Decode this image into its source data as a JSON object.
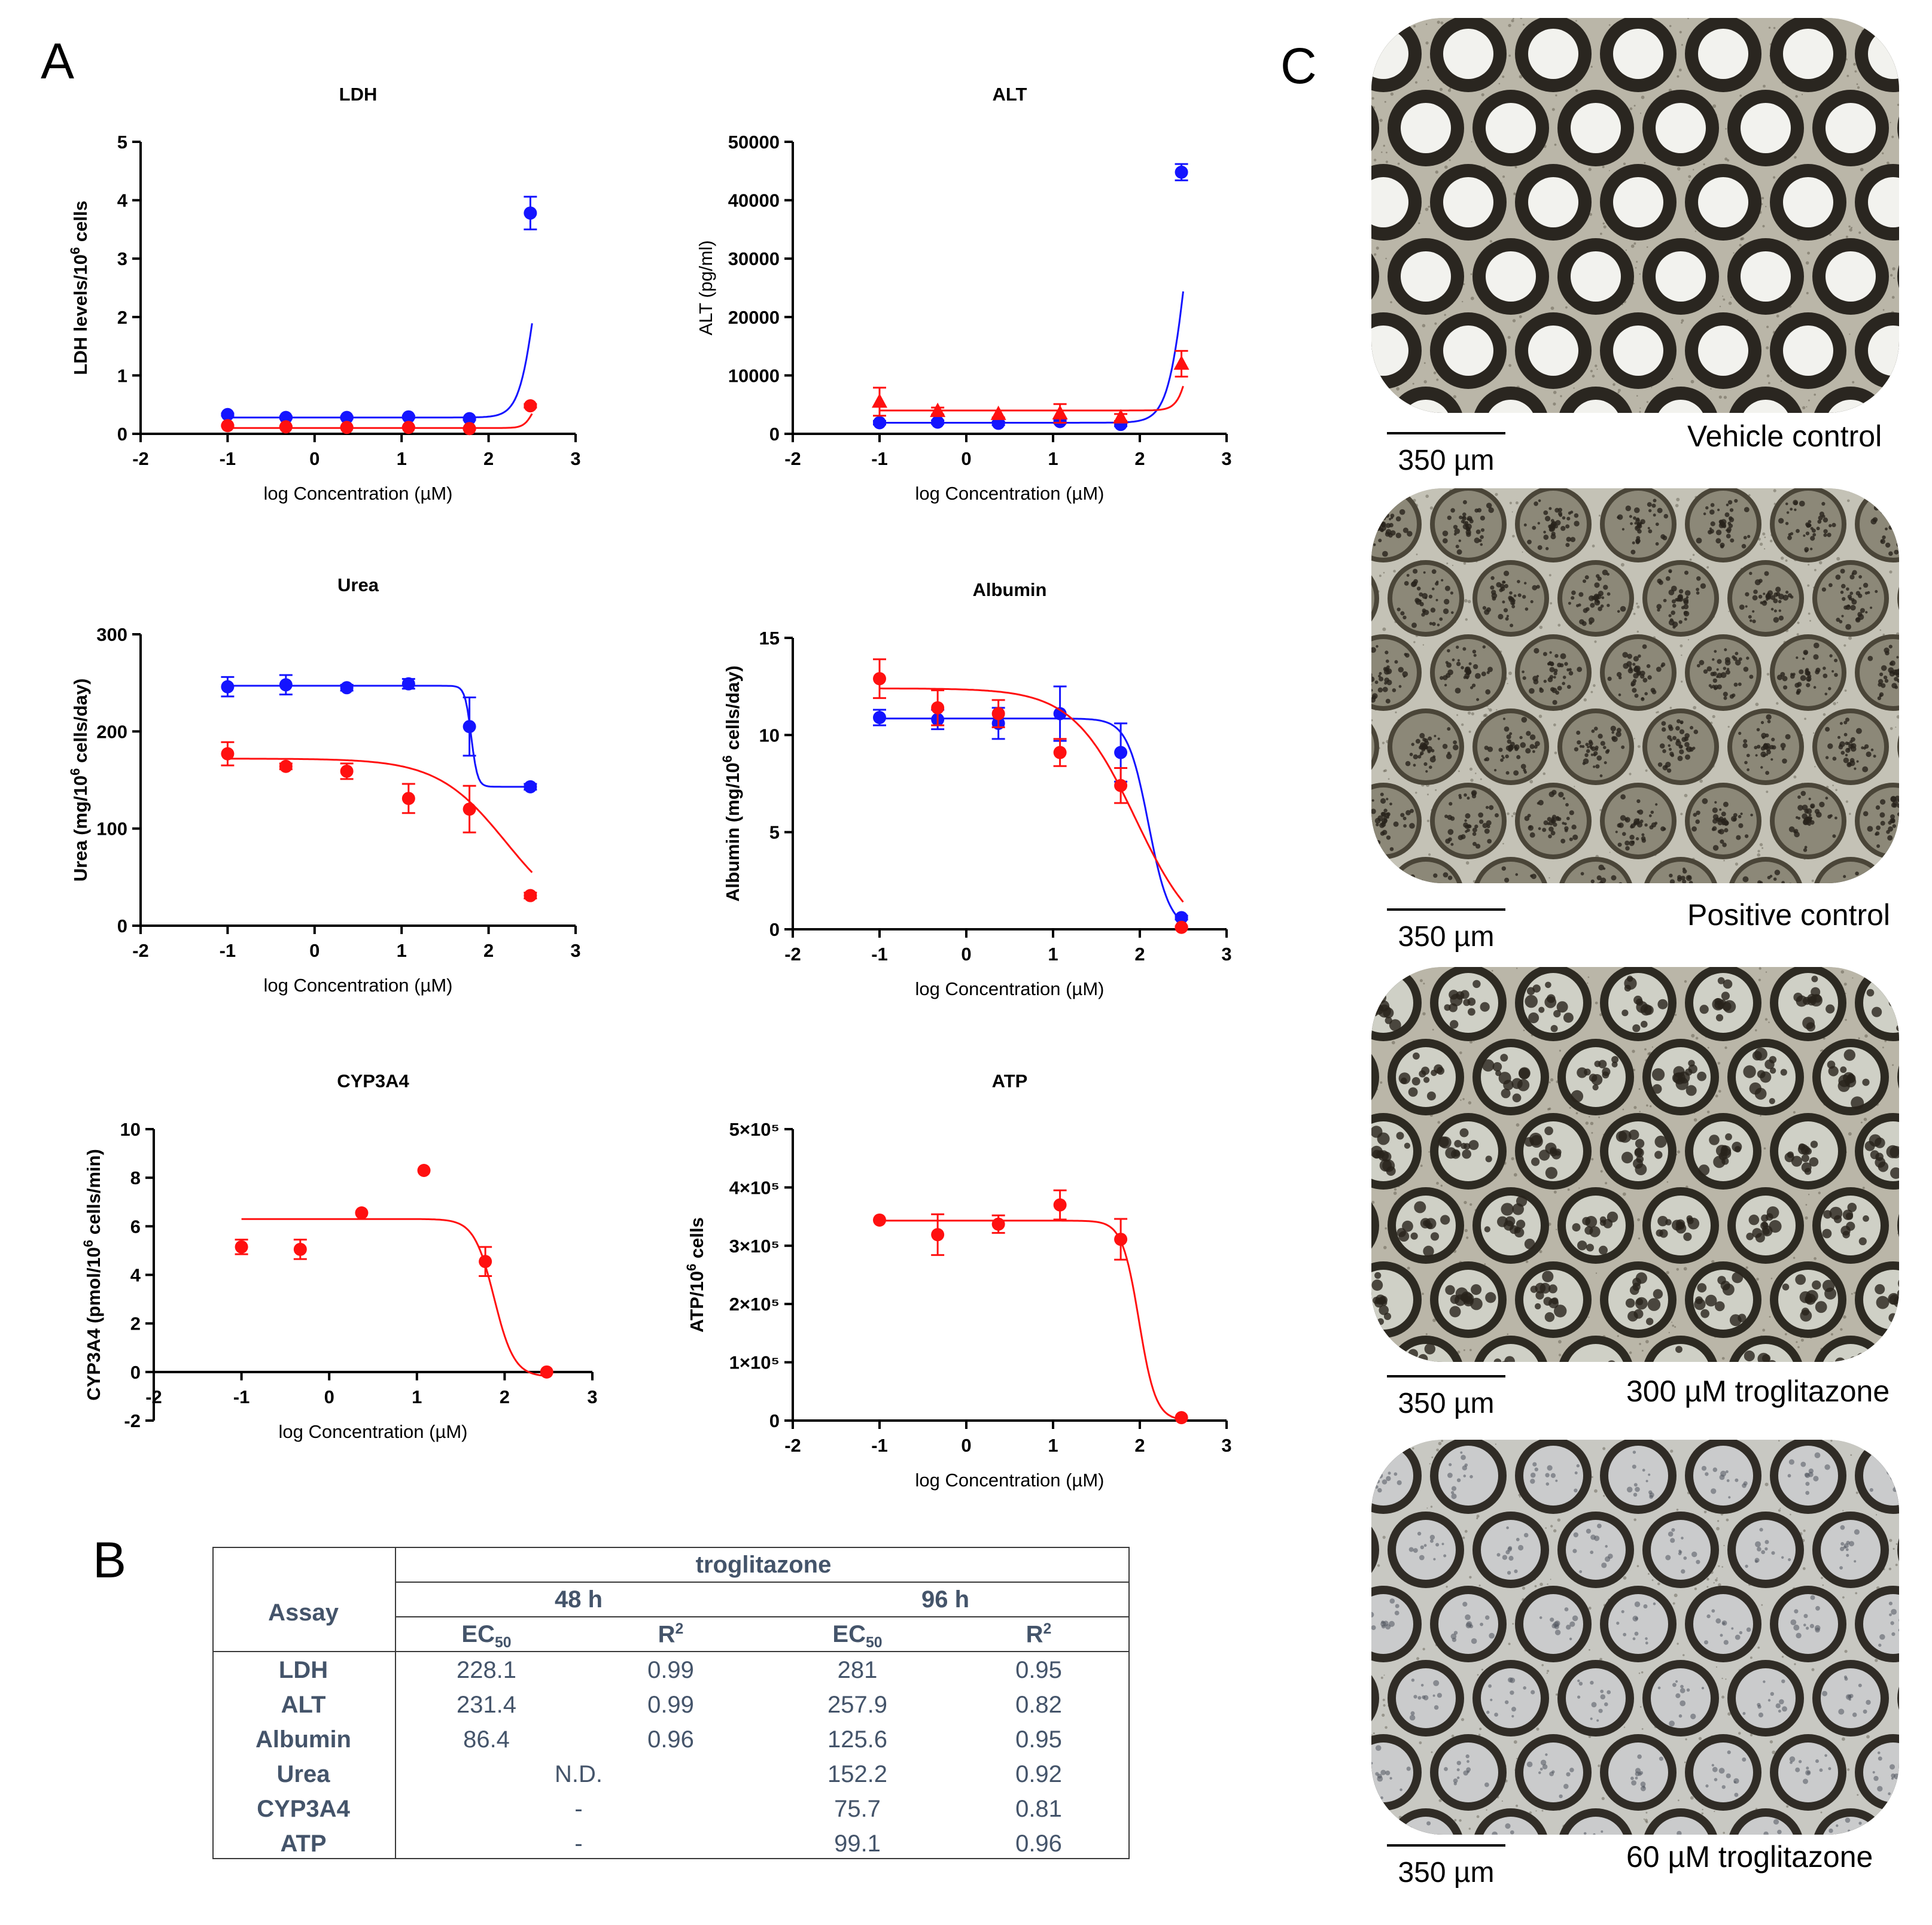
{
  "panels": {
    "a": "A",
    "b": "B",
    "c": "C"
  },
  "colors": {
    "blue": "#1414ff",
    "red": "#ff1010",
    "axis": "#000000",
    "table_text": "#44546a"
  },
  "chart_data": [
    {
      "id": "ldh",
      "type": "scatter",
      "title": "LDH",
      "ylabel": "LDH levels/10^6 cells",
      "ylabel_parts": {
        "main": "LDH levels/10",
        "sup": "6",
        "tail": " cells"
      },
      "xlabel": "log Concentration (µM)",
      "xlim": [
        -2,
        3
      ],
      "ylim": [
        0,
        5
      ],
      "xticks": [
        -2,
        -1,
        0,
        1,
        2,
        3
      ],
      "yticks": [
        0,
        1,
        2,
        3,
        4,
        5
      ],
      "ytick_labels": [
        "0",
        "1",
        "2",
        "3",
        "4",
        "5"
      ],
      "series": [
        {
          "name": "blue",
          "color": "#1414ff",
          "marker": "circle",
          "x": [
            -1,
            -0.33,
            0.37,
            1.08,
            1.78,
            2.48
          ],
          "y": [
            0.33,
            0.28,
            0.28,
            0.29,
            0.26,
            3.78
          ],
          "err": [
            0.02,
            0.02,
            0.02,
            0.02,
            0.02,
            0.28
          ],
          "fit": {
            "model": "hill",
            "bottom": 0.28,
            "top": 4.6,
            "logEC50": 2.55,
            "slope": 4.5,
            "xmin": -1,
            "xmax": 2.5
          }
        },
        {
          "name": "red",
          "color": "#ff1010",
          "marker": "circle",
          "x": [
            -1,
            -0.33,
            0.37,
            1.08,
            1.78,
            2.48
          ],
          "y": [
            0.14,
            0.12,
            0.11,
            0.11,
            0.09,
            0.48
          ],
          "err": [
            0.01,
            0.01,
            0.01,
            0.01,
            0.01,
            0.03
          ],
          "fit": {
            "model": "hill",
            "bottom": 0.1,
            "top": 0.7,
            "logEC50": 2.52,
            "slope": 8,
            "xmin": -1,
            "xmax": 2.5
          }
        }
      ]
    },
    {
      "id": "alt",
      "type": "scatter",
      "title": "ALT",
      "ylabel": "ALT (pg/ml)",
      "xlabel": "log Concentration (µM)",
      "xlim": [
        -2,
        3
      ],
      "ylim": [
        0,
        50000
      ],
      "xticks": [
        -2,
        -1,
        0,
        1,
        2,
        3
      ],
      "yticks": [
        0,
        10000,
        20000,
        30000,
        40000,
        50000
      ],
      "ytick_labels": [
        "0",
        "10000",
        "20000",
        "30000",
        "40000",
        "50000"
      ],
      "series": [
        {
          "name": "blue",
          "color": "#1414ff",
          "marker": "circle",
          "x": [
            -1,
            -0.33,
            0.37,
            1.08,
            1.78,
            2.48
          ],
          "y": [
            1900,
            2000,
            1800,
            2100,
            1600,
            44800
          ],
          "err": [
            300,
            300,
            300,
            300,
            300,
            1400
          ],
          "fit": {
            "model": "hill",
            "bottom": 1900,
            "top": 60000,
            "logEC50": 2.55,
            "slope": 4,
            "xmin": -1,
            "xmax": 2.5
          }
        },
        {
          "name": "red",
          "color": "#ff1010",
          "marker": "triangle",
          "x": [
            -1,
            -0.33,
            0.37,
            1.08,
            1.78,
            2.48
          ],
          "y": [
            5500,
            3900,
            3400,
            3500,
            2800,
            12000
          ],
          "err": [
            2400,
            600,
            600,
            1600,
            600,
            2200
          ],
          "fit": {
            "model": "hill",
            "bottom": 4000,
            "top": 30000,
            "logEC50": 2.62,
            "slope": 6,
            "xmin": -1,
            "xmax": 2.5
          }
        }
      ]
    },
    {
      "id": "urea",
      "type": "scatter",
      "title": "Urea",
      "ylabel": "Urea (mg/10^6 cells/day)",
      "ylabel_parts": {
        "main": "Urea (mg/10",
        "sup": "6",
        "tail": " cells/day)"
      },
      "xlabel": "log Concentration (µM)",
      "xlim": [
        -2,
        3
      ],
      "ylim": [
        0,
        300
      ],
      "xticks": [
        -2,
        -1,
        0,
        1,
        2,
        3
      ],
      "yticks": [
        0,
        100,
        200,
        300
      ],
      "ytick_labels": [
        "0",
        "100",
        "200",
        "300"
      ],
      "series": [
        {
          "name": "blue",
          "color": "#1414ff",
          "marker": "circle",
          "x": [
            -1,
            -0.33,
            0.37,
            1.08,
            1.78,
            2.48
          ],
          "y": [
            246,
            248,
            245,
            249,
            205,
            143
          ],
          "err": [
            10,
            10,
            3,
            5,
            30,
            3
          ],
          "fit": {
            "model": "hill_down",
            "top": 247,
            "bottom": 143,
            "logEC50": 1.8,
            "slope": 12,
            "xmin": -1,
            "xmax": 2.5
          }
        },
        {
          "name": "red",
          "color": "#ff1010",
          "marker": "circle",
          "x": [
            -1,
            -0.33,
            0.37,
            1.08,
            1.78,
            2.48
          ],
          "y": [
            177,
            164,
            159,
            131,
            120,
            31
          ],
          "err": [
            12,
            3,
            8,
            15,
            24,
            3
          ],
          "fit": {
            "model": "hill_down",
            "top": 172,
            "bottom": 0,
            "logEC50": 2.2,
            "slope": 1.1,
            "xmin": -1,
            "xmax": 2.5
          }
        }
      ]
    },
    {
      "id": "albumin",
      "type": "scatter",
      "title": "Albumin",
      "ylabel": "Albumin (mg/10^6 cells/day)",
      "ylabel_parts": {
        "main": "Albumin (mg/10",
        "sup": "6",
        "tail": " cells/day)"
      },
      "xlabel": "log Concentration (µM)",
      "xlim": [
        -2,
        3
      ],
      "ylim": [
        0,
        15
      ],
      "xticks": [
        -2,
        -1,
        0,
        1,
        2,
        3
      ],
      "yticks": [
        0,
        5,
        10,
        15
      ],
      "ytick_labels": [
        "0",
        "5",
        "10",
        "15"
      ],
      "series": [
        {
          "name": "blue",
          "color": "#1414ff",
          "marker": "circle",
          "x": [
            -1,
            -0.33,
            0.37,
            1.08,
            1.78,
            2.48
          ],
          "y": [
            10.9,
            10.8,
            10.6,
            11.1,
            9.1,
            0.6
          ],
          "err": [
            0.4,
            0.5,
            0.8,
            1.4,
            1.5,
            0.1
          ],
          "fit": {
            "model": "hill_down",
            "top": 10.85,
            "bottom": 0,
            "logEC50": 2.1,
            "slope": 3.6,
            "xmin": -1,
            "xmax": 2.5
          }
        },
        {
          "name": "red",
          "color": "#ff1010",
          "marker": "circle",
          "x": [
            -1,
            -0.33,
            0.37,
            1.08,
            1.78,
            2.48
          ],
          "y": [
            12.9,
            11.4,
            11.1,
            9.1,
            7.4,
            0.1
          ],
          "err": [
            1.0,
            0.9,
            0.7,
            0.7,
            0.9,
            0.05
          ],
          "fit": {
            "model": "hill_down",
            "top": 12.4,
            "bottom": -1,
            "logEC50": 1.95,
            "slope": 1.2,
            "xmin": -1,
            "xmax": 2.5
          }
        }
      ]
    },
    {
      "id": "cyp3a4",
      "type": "scatter",
      "title": "CYP3A4",
      "ylabel": "CYP3A4 (pmol/10^6 cells/min)",
      "ylabel_parts": {
        "main": "CYP3A4 (pmol/10",
        "sup": "6",
        "tail": " cells/min)"
      },
      "xlabel": "log Concentration (µM)",
      "xlim": [
        -2,
        3
      ],
      "ylim": [
        -2,
        10
      ],
      "xticks": [
        -2,
        -1,
        0,
        1,
        2,
        3
      ],
      "yticks": [
        -2,
        0,
        2,
        4,
        6,
        8,
        10
      ],
      "ytick_labels": [
        "-2",
        "0",
        "2",
        "4",
        "6",
        "8",
        "10"
      ],
      "series": [
        {
          "name": "red",
          "color": "#ff1010",
          "marker": "circle",
          "x": [
            -1,
            -0.33,
            0.37,
            1.08,
            1.78,
            2.48
          ],
          "y": [
            5.15,
            5.05,
            6.55,
            8.3,
            4.55,
            0
          ],
          "err": [
            0.3,
            0.4,
            0,
            0,
            0.6,
            0
          ],
          "fit": {
            "model": "hill_down",
            "top": 6.3,
            "bottom": -0.2,
            "logEC50": 1.88,
            "slope": 3.8,
            "xmin": -1,
            "xmax": 2.48
          }
        }
      ]
    },
    {
      "id": "atp",
      "type": "scatter",
      "title": "ATP",
      "ylabel": "ATP/10^6 cells",
      "ylabel_parts": {
        "main": "ATP/10",
        "sup": "6",
        "tail": " cells"
      },
      "xlabel": "log Concentration (µM)",
      "xlim": [
        -2,
        3
      ],
      "ylim": [
        0,
        500000
      ],
      "xticks": [
        -2,
        -1,
        0,
        1,
        2,
        3
      ],
      "yticks": [
        0,
        100000,
        200000,
        300000,
        400000,
        500000
      ],
      "ytick_labels": [
        "0",
        "1×10⁵",
        "2×10⁵",
        "3×10⁵",
        "4×10⁵",
        "5×10⁵"
      ],
      "series": [
        {
          "name": "red",
          "color": "#ff1010",
          "marker": "circle",
          "x": [
            -1,
            -0.33,
            0.37,
            1.08,
            1.78,
            2.48
          ],
          "y": [
            344000,
            319000,
            337000,
            370000,
            311000,
            5000
          ],
          "err": [
            0,
            35000,
            15000,
            25000,
            35000,
            0
          ],
          "fit": {
            "model": "hill_down",
            "top": 343000,
            "bottom": 0,
            "logEC50": 1.99,
            "slope": 4.5,
            "xmin": -1,
            "xmax": 2.48
          }
        }
      ]
    }
  ],
  "table": {
    "assay_header": "Assay",
    "compound": "troglitazone",
    "times": [
      "48 h",
      "96 h"
    ],
    "col_ec": "EC",
    "col_ec_sub": "50",
    "col_r": "R",
    "col_r_sup": "2",
    "rows": [
      {
        "assay": "LDH",
        "ec48": "228.1",
        "r48": "0.99",
        "ec96": "281",
        "r96": "0.95"
      },
      {
        "assay": "ALT",
        "ec48": "231.4",
        "r48": "0.99",
        "ec96": "257.9",
        "r96": "0.82"
      },
      {
        "assay": "Albumin",
        "ec48": "86.4",
        "r48": "0.96",
        "ec96": "125.6",
        "r96": "0.95"
      },
      {
        "assay": "Urea",
        "merged48": "N.D.",
        "ec96": "152.2",
        "r96": "0.92"
      },
      {
        "assay": "CYP3A4",
        "merged48": "-",
        "ec96": "75.7",
        "r96": "0.81"
      },
      {
        "assay": "ATP",
        "merged48": "-",
        "ec96": "99.1",
        "r96": "0.96"
      }
    ]
  },
  "micrographs": [
    {
      "caption": "Vehicle control",
      "scale": "350 µm",
      "pattern": "clear-with-dark-rim"
    },
    {
      "caption": "Positive control",
      "scale": "350 µm",
      "pattern": "speckled-debris"
    },
    {
      "caption": "300 µM troglitazone",
      "scale": "350 µm",
      "pattern": "partially-dark"
    },
    {
      "caption": "60 µM troglitazone",
      "scale": "350 µm",
      "pattern": "light-spotted"
    }
  ]
}
